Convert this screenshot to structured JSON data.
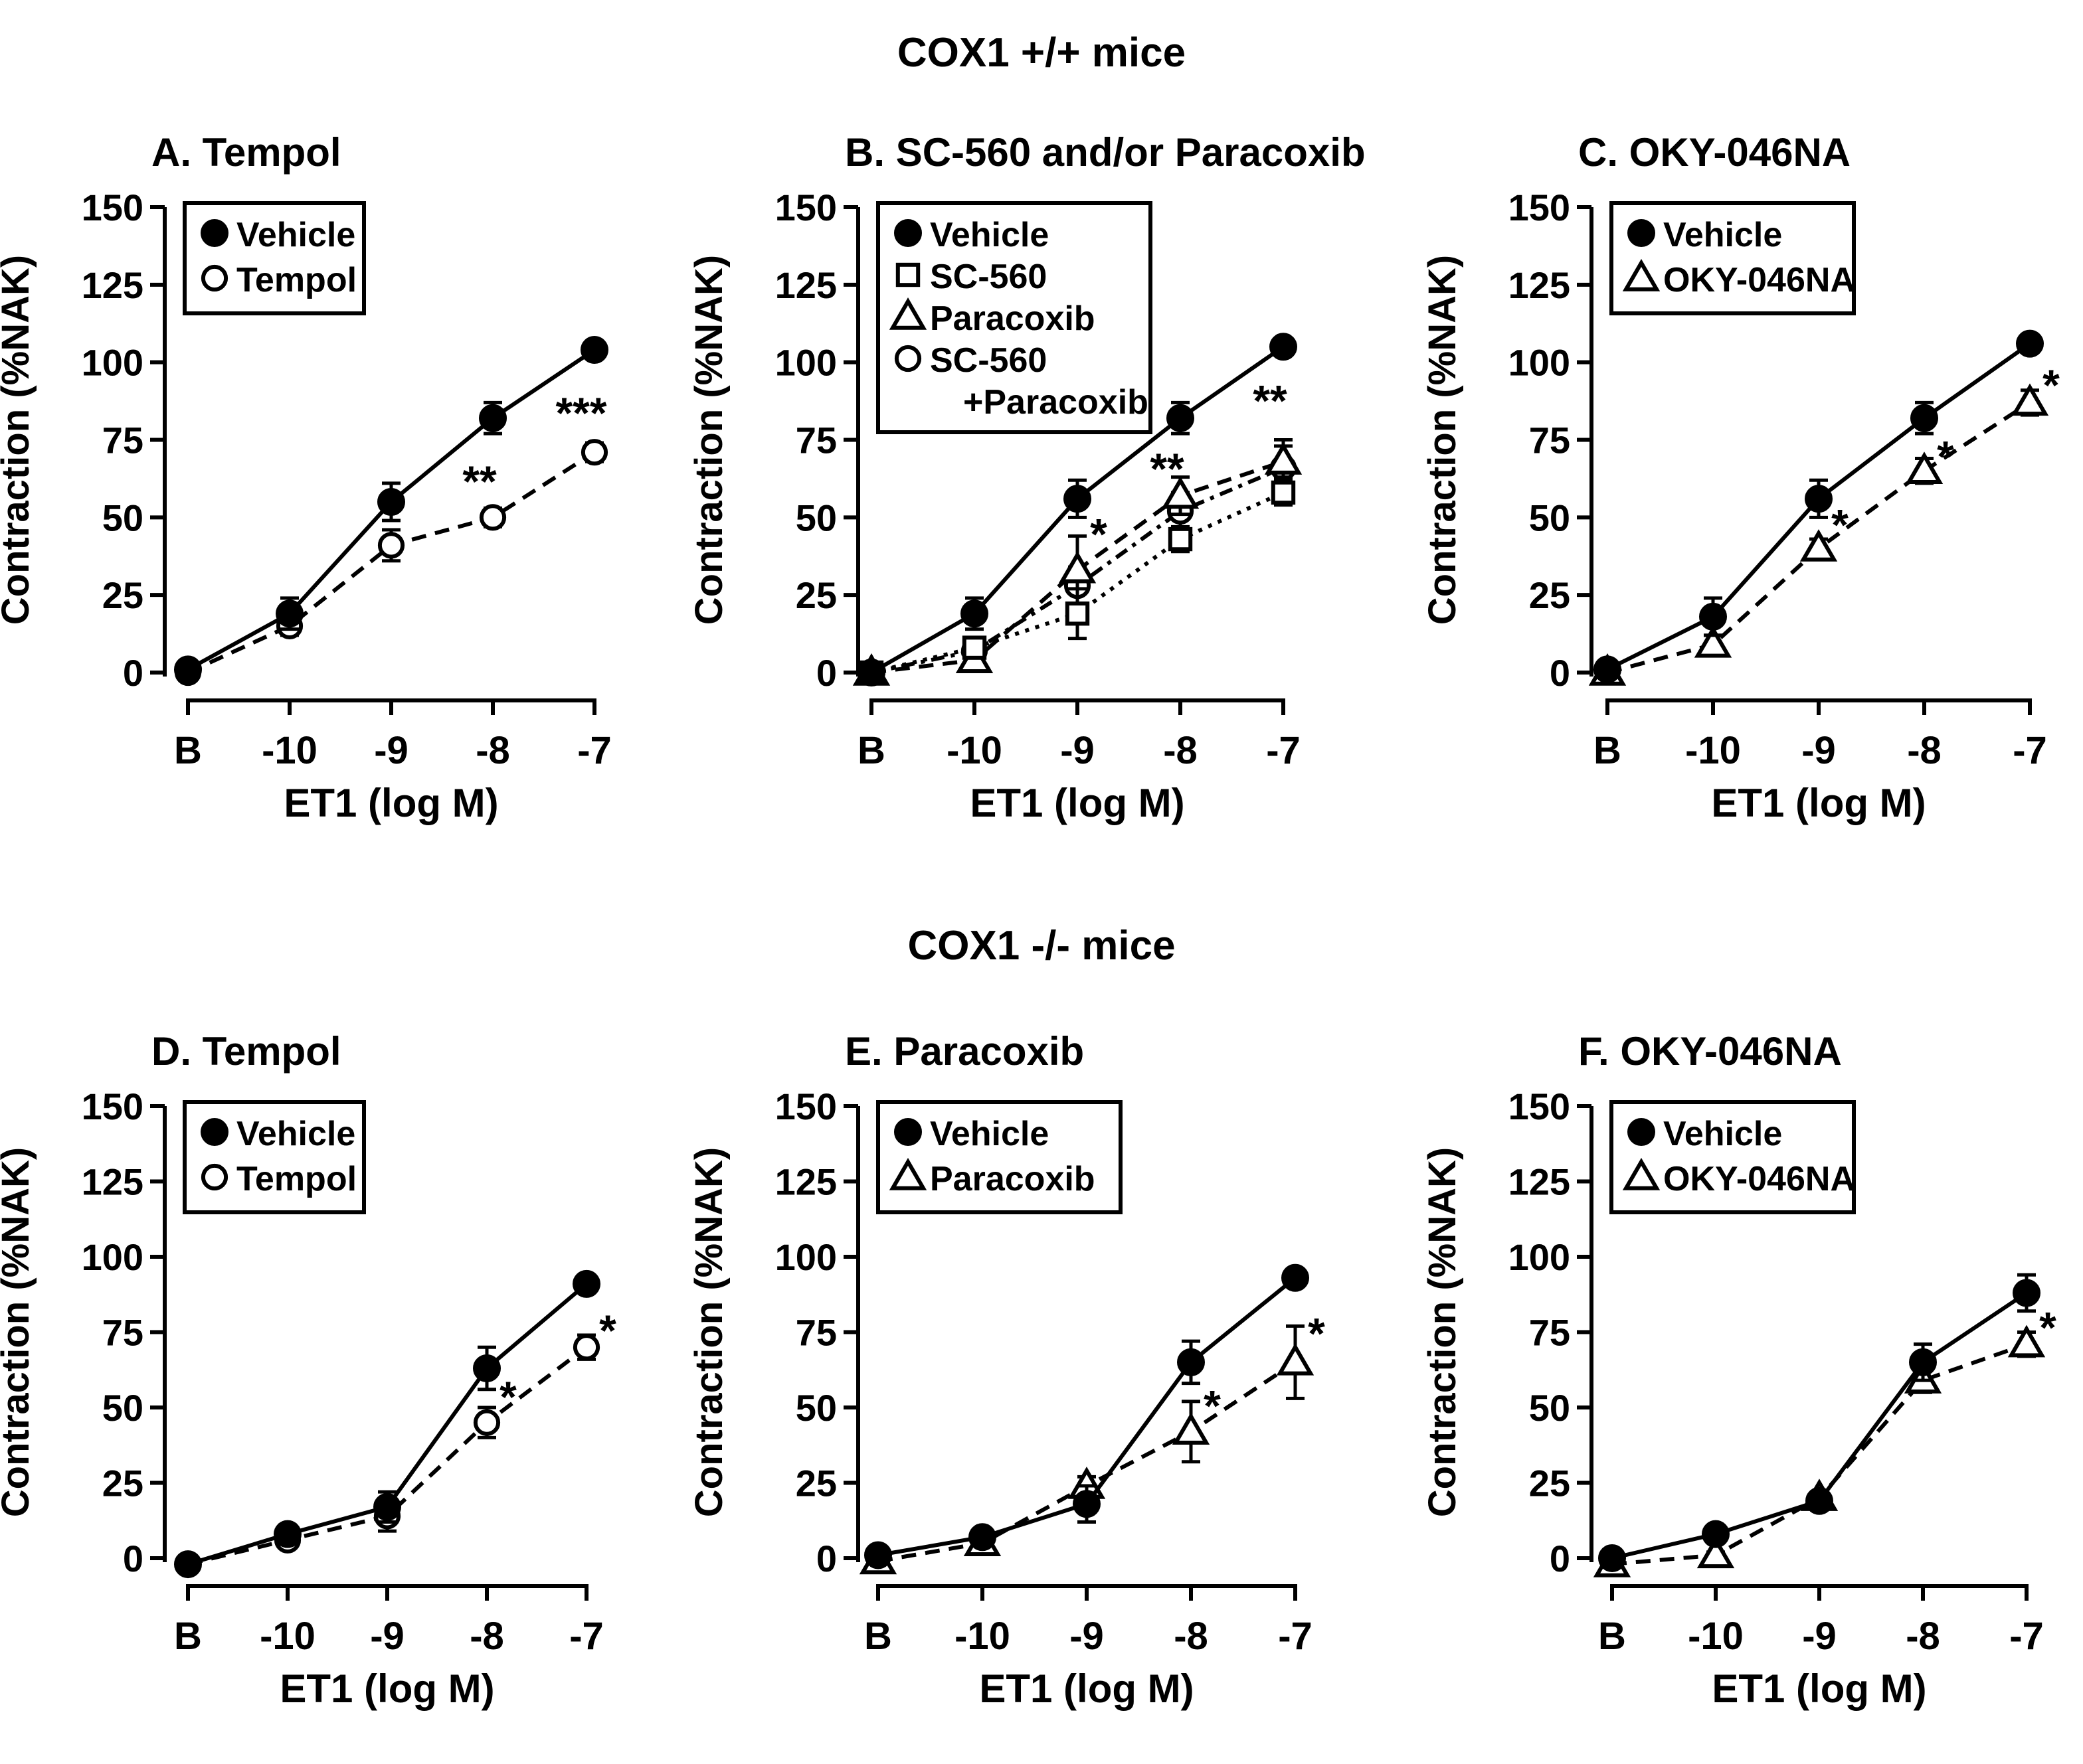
{
  "figure": {
    "top_title": "COX1 +/+ mice",
    "bottom_title": "COX1 -/- mice",
    "colors": {
      "ink": "#000000",
      "open_fill": "#ffffff"
    }
  },
  "chart_data": [
    {
      "id": "A",
      "type": "line",
      "title": "A.  Tempol",
      "xlabel": "ET1 (log M)",
      "ylabel": "Contraction (%NAK)",
      "categories": [
        "B",
        "-10",
        "-9",
        "-8",
        "-7"
      ],
      "ylim": [
        0,
        150
      ],
      "yticks": [
        0,
        25,
        50,
        75,
        100,
        125,
        150
      ],
      "legend_position": "top-left",
      "series": [
        {
          "name": "Vehicle",
          "marker": "filled-circle",
          "line": "solid",
          "values": [
            1,
            19,
            55,
            82,
            104
          ],
          "errors": [
            1,
            5,
            6,
            5,
            2
          ]
        },
        {
          "name": "Tempol",
          "marker": "open-circle",
          "line": "dashed",
          "values": [
            0,
            15,
            41,
            50,
            71
          ],
          "errors": [
            1,
            3,
            5,
            3,
            3
          ]
        }
      ],
      "annotations": [
        {
          "text": "**",
          "category": "-8",
          "value": 64
        },
        {
          "text": "***",
          "category": "-7",
          "value": 86
        }
      ]
    },
    {
      "id": "B",
      "type": "line",
      "title": "B.  SC-560 and/or Paracoxib",
      "xlabel": "ET1 (log M)",
      "ylabel": "Contraction (%NAK)",
      "categories": [
        "B",
        "-10",
        "-9",
        "-8",
        "-7"
      ],
      "ylim": [
        0,
        150
      ],
      "yticks": [
        0,
        25,
        50,
        75,
        100,
        125,
        150
      ],
      "legend_position": "top-left",
      "series": [
        {
          "name": "Vehicle",
          "marker": "filled-circle",
          "line": "solid",
          "values": [
            0,
            19,
            56,
            82,
            105
          ],
          "errors": [
            1,
            5,
            6,
            5,
            2
          ]
        },
        {
          "name": "SC-560",
          "marker": "open-square",
          "line": "dotted",
          "values": [
            0,
            8,
            19,
            43,
            58
          ],
          "errors": [
            1,
            3,
            8,
            4,
            4
          ]
        },
        {
          "name": "Paracoxib",
          "marker": "open-triangle",
          "line": "dashed",
          "values": [
            0,
            4,
            33,
            57,
            68
          ],
          "errors": [
            1,
            3,
            11,
            6,
            5
          ]
        },
        {
          "name": "SC-560\n+Paracoxib",
          "marker": "open-circle",
          "line": "dash-dot",
          "values": [
            0,
            7,
            28,
            52,
            66
          ],
          "errors": [
            1,
            3,
            6,
            6,
            9
          ]
        }
      ],
      "annotations": [
        {
          "text": "*",
          "category": "-9",
          "value": 47
        },
        {
          "text": "**",
          "category": "-8",
          "value": 68
        },
        {
          "text": "**",
          "category": "-7",
          "value": 90
        }
      ]
    },
    {
      "id": "C",
      "type": "line",
      "title": "C.  OKY-046NA",
      "xlabel": "ET1 (log M)",
      "ylabel": "Contraction (%NAK)",
      "categories": [
        "B",
        "-10",
        "-9",
        "-8",
        "-7"
      ],
      "ylim": [
        0,
        150
      ],
      "yticks": [
        0,
        25,
        50,
        75,
        100,
        125,
        150
      ],
      "legend_position": "top-left",
      "series": [
        {
          "name": "Vehicle",
          "marker": "filled-circle",
          "line": "solid",
          "values": [
            1,
            18,
            56,
            82,
            106
          ],
          "errors": [
            1,
            6,
            6,
            5,
            2
          ]
        },
        {
          "name": "OKY-046NA",
          "marker": "open-triangle",
          "line": "dashed",
          "values": [
            0,
            9,
            40,
            65,
            87
          ],
          "errors": [
            1,
            3,
            3,
            4,
            4
          ]
        }
      ],
      "annotations": [
        {
          "text": "*",
          "category": "-9",
          "value": 50
        },
        {
          "text": "*",
          "category": "-8",
          "value": 72
        },
        {
          "text": "*",
          "category": "-7",
          "value": 95
        }
      ]
    },
    {
      "id": "D",
      "type": "line",
      "title": "D.  Tempol",
      "xlabel": "ET1 (log M)",
      "ylabel": "Contraction (%NAK)",
      "categories": [
        "B",
        "-10",
        "-9",
        "-8",
        "-7"
      ],
      "ylim": [
        0,
        150
      ],
      "yticks": [
        0,
        25,
        50,
        75,
        100,
        125,
        150
      ],
      "legend_position": "top-left",
      "series": [
        {
          "name": "Vehicle",
          "marker": "filled-circle",
          "line": "solid",
          "values": [
            -2,
            8,
            17,
            63,
            91
          ],
          "errors": [
            1,
            3,
            5,
            7,
            2
          ]
        },
        {
          "name": "Tempol",
          "marker": "open-circle",
          "line": "dashed",
          "values": [
            -2,
            6,
            14,
            45,
            70
          ],
          "errors": [
            1,
            2,
            5,
            5,
            4
          ]
        }
      ],
      "annotations": [
        {
          "text": "*",
          "category": "-8",
          "value": 56
        },
        {
          "text": "*",
          "category": "-7",
          "value": 78
        }
      ]
    },
    {
      "id": "E",
      "type": "line",
      "title": "E.  Paracoxib",
      "xlabel": "ET1 (log M)",
      "ylabel": "Contraction (%NAK)",
      "categories": [
        "B",
        "-10",
        "-9",
        "-8",
        "-7"
      ],
      "ylim": [
        0,
        150
      ],
      "yticks": [
        0,
        25,
        50,
        75,
        100,
        125,
        150
      ],
      "legend_position": "top-left",
      "series": [
        {
          "name": "Vehicle",
          "marker": "filled-circle",
          "line": "solid",
          "values": [
            1,
            7,
            18,
            65,
            93
          ],
          "errors": [
            1,
            2,
            6,
            7,
            2
          ]
        },
        {
          "name": "Paracoxib",
          "marker": "open-triangle",
          "line": "dashed",
          "values": [
            -1,
            5,
            24,
            42,
            65
          ],
          "errors": [
            1,
            2,
            3,
            10,
            12
          ]
        }
      ],
      "annotations": [
        {
          "text": "*",
          "category": "-8",
          "value": 53
        },
        {
          "text": "*",
          "category": "-7",
          "value": 77
        }
      ]
    },
    {
      "id": "F",
      "type": "line",
      "title": "F.  OKY-046NA",
      "xlabel": "ET1 (log M)",
      "ylabel": "Contraction (%NAK)",
      "categories": [
        "B",
        "-10",
        "-9",
        "-8",
        "-7"
      ],
      "ylim": [
        0,
        150
      ],
      "yticks": [
        0,
        25,
        50,
        75,
        100,
        125,
        150
      ],
      "legend_position": "top-left",
      "series": [
        {
          "name": "Vehicle",
          "marker": "filled-circle",
          "line": "solid",
          "values": [
            0,
            8,
            19,
            65,
            88
          ],
          "errors": [
            1,
            2,
            3,
            6,
            6
          ]
        },
        {
          "name": "OKY-046NA",
          "marker": "open-triangle",
          "line": "dashed",
          "values": [
            -2,
            1,
            20,
            59,
            71
          ],
          "errors": [
            1,
            1,
            2,
            4,
            4
          ]
        }
      ],
      "annotations": [
        {
          "text": "*",
          "category": "-7",
          "value": 79
        }
      ]
    }
  ]
}
